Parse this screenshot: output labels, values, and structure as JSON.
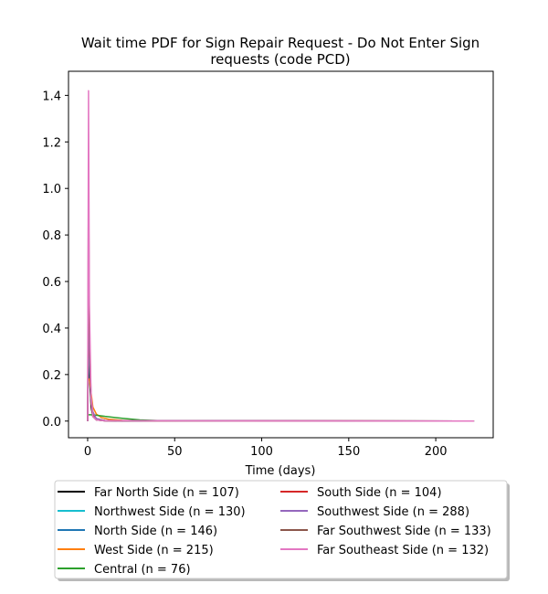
{
  "chart_data": {
    "type": "line",
    "title": "Wait time PDF for Sign Repair Request - Do Not Enter Sign",
    "title_line2": "requests (code PCD)",
    "xlabel": "Time (days)",
    "ylabel": "",
    "xlim": [
      -11,
      233
    ],
    "ylim": [
      -0.0716,
      1.5036
    ],
    "xticks": [
      0,
      50,
      100,
      150,
      200
    ],
    "yticks": [
      0.0,
      0.2,
      0.4,
      0.6,
      0.8,
      1.0,
      1.2,
      1.4
    ],
    "xtick_labels": [
      "0",
      "50",
      "100",
      "150",
      "200"
    ],
    "ytick_labels": [
      "0.0",
      "0.2",
      "0.4",
      "0.6",
      "0.8",
      "1.0",
      "1.2",
      "1.4"
    ],
    "grid": false,
    "legend_placement": "below",
    "series": [
      {
        "name": "Far North Side (n = 107)",
        "color": "#000000",
        "x": [
          0,
          0.5,
          1,
          2,
          3,
          5,
          10,
          20,
          222
        ],
        "y": [
          0.0,
          0.39,
          0.2,
          0.06,
          0.02,
          0.005,
          0.001,
          0.0,
          0.0
        ]
      },
      {
        "name": "Northwest Side (n = 130)",
        "color": "#17becf",
        "x": [
          0,
          0.5,
          1,
          2,
          3,
          5,
          10,
          222
        ],
        "y": [
          0.0,
          0.45,
          0.25,
          0.08,
          0.03,
          0.01,
          0.002,
          0.0
        ]
      },
      {
        "name": "North Side (n = 146)",
        "color": "#1f77b4",
        "x": [
          0,
          0.5,
          1,
          2,
          3,
          5,
          10,
          222
        ],
        "y": [
          0.0,
          0.58,
          0.3,
          0.09,
          0.03,
          0.01,
          0.002,
          0.0
        ]
      },
      {
        "name": "West Side (n = 215)",
        "color": "#ff7f0e",
        "x": [
          0,
          1,
          2,
          3,
          5,
          8,
          12,
          20,
          40,
          222
        ],
        "y": [
          0.18,
          0.18,
          0.12,
          0.06,
          0.03,
          0.015,
          0.008,
          0.003,
          0.001,
          0.0
        ]
      },
      {
        "name": "Central (n = 76)",
        "color": "#2ca02c",
        "x": [
          0,
          2,
          5,
          10,
          20,
          30,
          40,
          60,
          222
        ],
        "y": [
          0.027,
          0.027,
          0.025,
          0.02,
          0.012,
          0.005,
          0.002,
          0.0,
          0.0
        ]
      },
      {
        "name": "South Side (n = 104)",
        "color": "#d62728",
        "x": [
          0,
          0.5,
          1,
          2,
          3,
          5,
          10,
          222
        ],
        "y": [
          0.0,
          0.64,
          0.3,
          0.08,
          0.03,
          0.01,
          0.002,
          0.0
        ]
      },
      {
        "name": "Southwest Side (n = 288)",
        "color": "#9467bd",
        "x": [
          0,
          0.5,
          1,
          2,
          3,
          5,
          10,
          222
        ],
        "y": [
          0.0,
          0.65,
          0.32,
          0.1,
          0.04,
          0.01,
          0.002,
          0.0
        ]
      },
      {
        "name": "Far Southwest Side (n = 133)",
        "color": "#8c564b",
        "x": [
          0,
          0.5,
          1,
          2,
          3,
          5,
          10,
          222
        ],
        "y": [
          0.0,
          1.03,
          0.4,
          0.08,
          0.02,
          0.005,
          0.001,
          0.0
        ]
      },
      {
        "name": "Far Southeast Side (n = 132)",
        "color": "#e377c2",
        "x": [
          0,
          0.5,
          1,
          2,
          3,
          5,
          10,
          222
        ],
        "y": [
          0.0,
          1.42,
          0.5,
          0.1,
          0.02,
          0.005,
          0.001,
          0.0
        ]
      }
    ]
  }
}
